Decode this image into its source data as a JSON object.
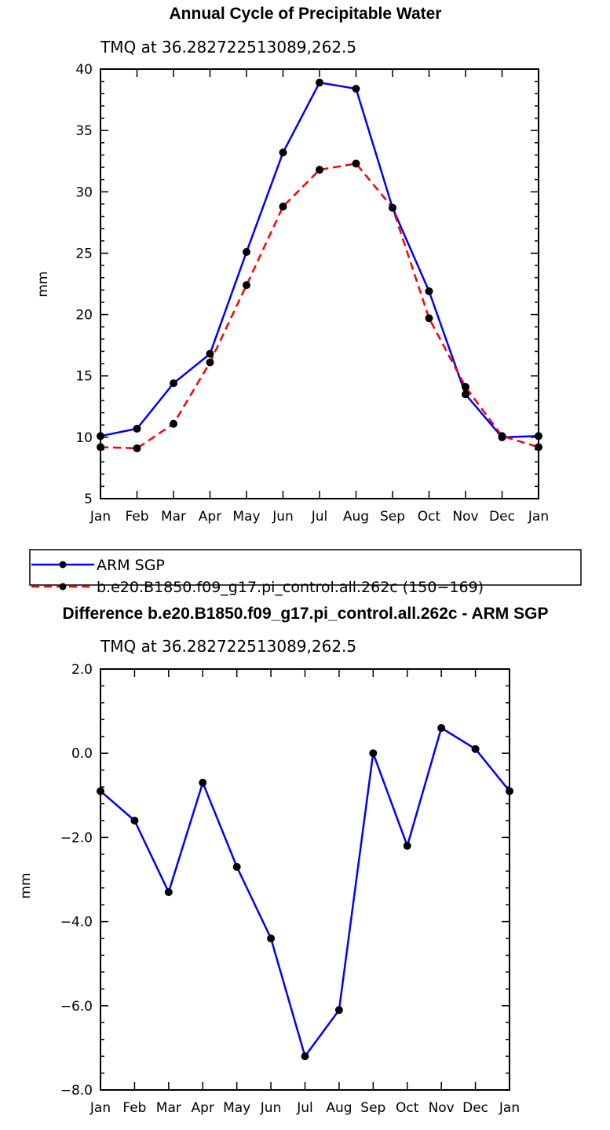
{
  "chart_data": [
    {
      "type": "line",
      "title": "Annual Cycle of Precipitable Water",
      "subtitle": "TMQ at 36.282722513089,262.5",
      "xlabel": "",
      "ylabel": "mm",
      "ylim": [
        5,
        40
      ],
      "yticks": [
        5,
        10,
        15,
        20,
        25,
        30,
        35,
        40
      ],
      "ytick_labels": [
        "5",
        "10",
        "15",
        "20",
        "25",
        "30",
        "35",
        "40"
      ],
      "categories": [
        "Jan",
        "Feb",
        "Mar",
        "Apr",
        "May",
        "Jun",
        "Jul",
        "Aug",
        "Sep",
        "Oct",
        "Nov",
        "Dec",
        "Jan"
      ],
      "series": [
        {
          "name": "ARM SGP",
          "color": "#0000ff",
          "style": "solid",
          "values": [
            10.1,
            10.7,
            14.4,
            16.8,
            25.1,
            33.2,
            38.9,
            38.4,
            28.7,
            21.9,
            13.5,
            10.0,
            10.1
          ]
        },
        {
          "name": "b.e20.B1850.f09_g17.pi_control.all.262c (150-169)",
          "color": "#ff0000",
          "style": "dashed",
          "values": [
            9.2,
            9.1,
            11.1,
            16.1,
            22.4,
            28.8,
            31.8,
            32.3,
            28.7,
            19.7,
            14.1,
            10.1,
            9.2
          ]
        }
      ],
      "legend": [
        "ARM SGP",
        "b.e20.B1850.f09_g17.pi_control.all.262c (150−169)"
      ]
    },
    {
      "type": "line",
      "title": "Difference b.e20.B1850.f09_g17.pi_control.all.262c - ARM SGP",
      "subtitle": "TMQ at 36.282722513089,262.5",
      "xlabel": "",
      "ylabel": "mm",
      "ylim": [
        -8,
        2
      ],
      "yticks": [
        -8,
        -6,
        -4,
        -2,
        0,
        2
      ],
      "ytick_labels": [
        "−8.0",
        "−6.0",
        "−4.0",
        "−2.0",
        "0.0",
        "2.0"
      ],
      "categories": [
        "Jan",
        "Feb",
        "Mar",
        "Apr",
        "May",
        "Jun",
        "Jul",
        "Aug",
        "Sep",
        "Oct",
        "Nov",
        "Dec",
        "Jan"
      ],
      "series": [
        {
          "name": "Difference",
          "color": "#0000ff",
          "style": "solid",
          "values": [
            -0.9,
            -1.6,
            -3.3,
            -0.7,
            -2.7,
            -4.4,
            -7.2,
            -6.1,
            0.0,
            -2.2,
            0.6,
            0.1,
            -0.9
          ]
        }
      ]
    }
  ]
}
